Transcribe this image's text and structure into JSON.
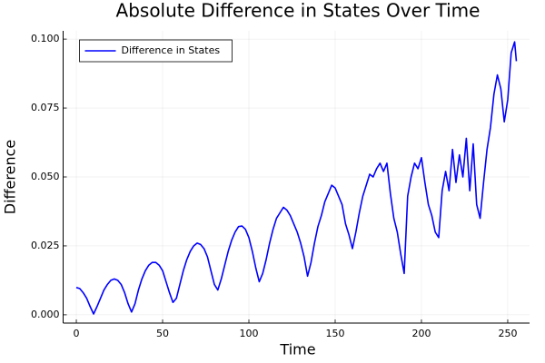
{
  "chart_data": {
    "type": "line",
    "title": "Absolute Difference in States Over Time",
    "xlabel": "Time",
    "ylabel": "Difference",
    "x": [
      0,
      2,
      4,
      6,
      8,
      10,
      12,
      14,
      16,
      18,
      20,
      22,
      24,
      26,
      28,
      30,
      32,
      34,
      36,
      38,
      40,
      42,
      44,
      46,
      48,
      50,
      52,
      54,
      56,
      58,
      60,
      62,
      64,
      66,
      68,
      70,
      72,
      74,
      76,
      78,
      80,
      82,
      84,
      86,
      88,
      90,
      92,
      94,
      96,
      98,
      100,
      102,
      104,
      106,
      108,
      110,
      112,
      114,
      116,
      118,
      120,
      122,
      124,
      126,
      128,
      130,
      132,
      134,
      136,
      138,
      140,
      142,
      144,
      146,
      148,
      150,
      152,
      154,
      156,
      158,
      160,
      162,
      164,
      166,
      168,
      170,
      172,
      174,
      176,
      178,
      180,
      182,
      184,
      186,
      188,
      190,
      192,
      194,
      196,
      198,
      200,
      202,
      204,
      206,
      208,
      210,
      212,
      214,
      216,
      218,
      220,
      222,
      224,
      226,
      228,
      230,
      232,
      234,
      236,
      238,
      240,
      242,
      244,
      246,
      248,
      250,
      252,
      254,
      255
    ],
    "series": [
      {
        "name": "Difference in States",
        "color": "#0000ff",
        "values": [
          0.0099,
          0.0095,
          0.008,
          0.006,
          0.003,
          0.0003,
          0.003,
          0.006,
          0.009,
          0.011,
          0.0125,
          0.013,
          0.0125,
          0.011,
          0.008,
          0.004,
          0.001,
          0.004,
          0.009,
          0.013,
          0.016,
          0.018,
          0.019,
          0.019,
          0.018,
          0.016,
          0.012,
          0.008,
          0.0045,
          0.006,
          0.011,
          0.016,
          0.02,
          0.023,
          0.025,
          0.026,
          0.0255,
          0.024,
          0.021,
          0.016,
          0.011,
          0.009,
          0.013,
          0.018,
          0.023,
          0.027,
          0.03,
          0.032,
          0.0322,
          0.031,
          0.028,
          0.023,
          0.017,
          0.012,
          0.015,
          0.02,
          0.026,
          0.031,
          0.035,
          0.037,
          0.039,
          0.038,
          0.036,
          0.033,
          0.03,
          0.026,
          0.021,
          0.014,
          0.019,
          0.026,
          0.032,
          0.036,
          0.041,
          0.044,
          0.047,
          0.046,
          0.043,
          0.04,
          0.033,
          0.029,
          0.024,
          0.03,
          0.037,
          0.043,
          0.047,
          0.051,
          0.05,
          0.053,
          0.055,
          0.052,
          0.055,
          0.044,
          0.035,
          0.03,
          0.022,
          0.015,
          0.043,
          0.05,
          0.055,
          0.053,
          0.057,
          0.048,
          0.04,
          0.036,
          0.03,
          0.028,
          0.045,
          0.052,
          0.045,
          0.06,
          0.048,
          0.058,
          0.05,
          0.064,
          0.045,
          0.062,
          0.04,
          0.035,
          0.048,
          0.06,
          0.068,
          0.08,
          0.087,
          0.082,
          0.07,
          0.078,
          0.095,
          0.099,
          0.092
        ]
      }
    ],
    "xlim": [
      -7.65,
      262.65
    ],
    "xticks": [
      0,
      50,
      100,
      150,
      200,
      250
    ],
    "ylim": [
      -0.003,
      0.103
    ],
    "yticks": [
      {
        "value": 0,
        "label": "0.000"
      },
      {
        "value": 0.025,
        "label": "0.025"
      },
      {
        "value": 0.05,
        "label": "0.050"
      },
      {
        "value": 0.075,
        "label": "0.075"
      },
      {
        "value": 0.1,
        "label": "0.100"
      }
    ],
    "grid": true,
    "legend": "topleft"
  }
}
